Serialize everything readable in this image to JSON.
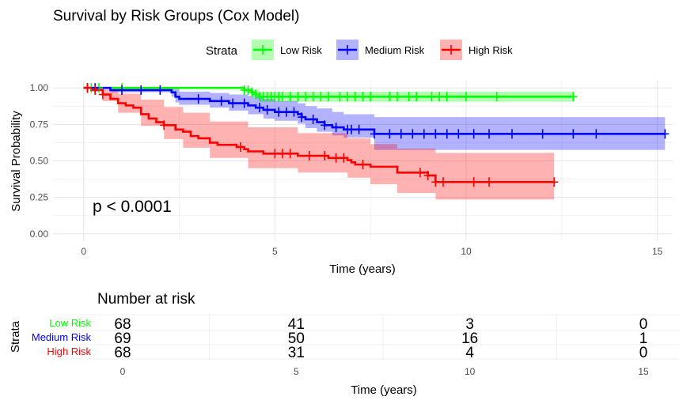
{
  "chart_data": [
    {
      "type": "line",
      "subtype": "kaplan-meier",
      "title": "Survival by Risk Groups (Cox Model)",
      "xlabel": "Time (years)",
      "ylabel": "Survival Probability",
      "xlim": [
        -0.8,
        15.4
      ],
      "ylim": [
        -0.05,
        1.05
      ],
      "xticks": [
        0,
        5,
        10,
        15
      ],
      "xtick_labels": [
        "0",
        "5",
        "10",
        "15"
      ],
      "yticks": [
        0,
        0.25,
        0.5,
        0.75,
        1.0
      ],
      "ytick_labels": [
        "0.00",
        "0.25",
        "0.50",
        "0.75",
        "1.00"
      ],
      "grid": true,
      "legend": {
        "title": "Strata",
        "position": "top"
      },
      "annotation": "p < 0.0001",
      "series": [
        {
          "name": "Low Risk",
          "color": "#00ff00",
          "band_color": "#00ff00",
          "steps": [
            [
              0,
              1.0
            ],
            [
              4.2,
              0.985
            ],
            [
              4.4,
              0.97
            ],
            [
              4.5,
              0.955
            ],
            [
              4.6,
              0.94
            ],
            [
              12.8,
              0.94
            ]
          ],
          "ci_upper": [
            [
              0,
              1.0
            ],
            [
              4.2,
              1.0
            ],
            [
              4.4,
              0.99
            ],
            [
              4.6,
              0.975
            ],
            [
              12.8,
              0.975
            ]
          ],
          "ci_lower": [
            [
              0,
              1.0
            ],
            [
              4.2,
              0.965
            ],
            [
              4.4,
              0.945
            ],
            [
              4.5,
              0.925
            ],
            [
              4.6,
              0.905
            ],
            [
              12.8,
              0.905
            ]
          ],
          "censor_times": [
            0.1,
            0.2,
            0.4,
            1.0,
            4.2,
            4.3,
            4.4,
            4.5,
            4.6,
            4.7,
            4.8,
            4.9,
            5.0,
            5.1,
            5.2,
            5.4,
            5.6,
            5.8,
            6.0,
            6.2,
            6.4,
            6.7,
            6.9,
            7.1,
            7.3,
            7.5,
            8.0,
            8.2,
            8.5,
            8.7,
            9.1,
            9.3,
            9.5,
            10.0,
            10.8,
            12.8
          ]
        },
        {
          "name": "Medium Risk",
          "color": "#0000ff",
          "band_color": "#0000ff",
          "steps": [
            [
              0,
              1.0
            ],
            [
              0.7,
              0.985
            ],
            [
              2.3,
              0.97
            ],
            [
              2.4,
              0.94
            ],
            [
              2.5,
              0.925
            ],
            [
              3.3,
              0.91
            ],
            [
              3.8,
              0.895
            ],
            [
              4.3,
              0.88
            ],
            [
              4.5,
              0.865
            ],
            [
              4.7,
              0.85
            ],
            [
              5.0,
              0.835
            ],
            [
              5.6,
              0.82
            ],
            [
              5.7,
              0.8
            ],
            [
              5.8,
              0.785
            ],
            [
              6.1,
              0.765
            ],
            [
              6.3,
              0.745
            ],
            [
              6.5,
              0.73
            ],
            [
              6.8,
              0.715
            ],
            [
              7.6,
              0.685
            ],
            [
              15.2,
              0.685
            ]
          ],
          "ci_upper": [
            [
              0,
              1.0
            ],
            [
              2.3,
              1.0
            ],
            [
              2.5,
              0.975
            ],
            [
              3.3,
              0.965
            ],
            [
              3.8,
              0.955
            ],
            [
              4.3,
              0.945
            ],
            [
              4.7,
              0.925
            ],
            [
              5.0,
              0.91
            ],
            [
              5.6,
              0.895
            ],
            [
              5.8,
              0.875
            ],
            [
              6.1,
              0.86
            ],
            [
              6.5,
              0.835
            ],
            [
              6.8,
              0.82
            ],
            [
              7.6,
              0.8
            ],
            [
              15.2,
              0.8
            ]
          ],
          "ci_lower": [
            [
              0,
              1.0
            ],
            [
              0.7,
              0.97
            ],
            [
              2.3,
              0.94
            ],
            [
              2.4,
              0.9
            ],
            [
              2.5,
              0.885
            ],
            [
              3.3,
              0.865
            ],
            [
              3.8,
              0.845
            ],
            [
              4.3,
              0.82
            ],
            [
              4.7,
              0.79
            ],
            [
              5.0,
              0.775
            ],
            [
              5.6,
              0.755
            ],
            [
              5.8,
              0.725
            ],
            [
              6.1,
              0.7
            ],
            [
              6.5,
              0.675
            ],
            [
              6.8,
              0.66
            ],
            [
              7.6,
              0.575
            ],
            [
              15.2,
              0.575
            ]
          ],
          "censor_times": [
            0.1,
            0.3,
            1.0,
            1.5,
            2.0,
            3.0,
            3.6,
            3.9,
            4.2,
            4.6,
            4.8,
            5.1,
            5.3,
            5.5,
            5.7,
            6.0,
            6.3,
            6.6,
            6.9,
            7.0,
            7.2,
            7.6,
            8.0,
            8.3,
            8.6,
            8.9,
            9.2,
            9.5,
            9.8,
            10.2,
            10.6,
            11.2,
            12.0,
            12.8,
            13.4,
            15.2
          ]
        },
        {
          "name": "High Risk",
          "color": "#ff0000",
          "band_color": "#ff0000",
          "steps": [
            [
              0,
              1.0
            ],
            [
              0.2,
              0.985
            ],
            [
              0.5,
              0.955
            ],
            [
              0.7,
              0.925
            ],
            [
              0.9,
              0.895
            ],
            [
              1.1,
              0.88
            ],
            [
              1.3,
              0.865
            ],
            [
              1.5,
              0.82
            ],
            [
              1.7,
              0.79
            ],
            [
              1.9,
              0.765
            ],
            [
              2.1,
              0.745
            ],
            [
              2.4,
              0.715
            ],
            [
              2.6,
              0.7
            ],
            [
              2.8,
              0.67
            ],
            [
              3.0,
              0.655
            ],
            [
              3.3,
              0.625
            ],
            [
              3.5,
              0.61
            ],
            [
              4.0,
              0.595
            ],
            [
              4.2,
              0.58
            ],
            [
              4.3,
              0.565
            ],
            [
              4.7,
              0.55
            ],
            [
              5.6,
              0.535
            ],
            [
              6.4,
              0.52
            ],
            [
              6.9,
              0.505
            ],
            [
              7.0,
              0.49
            ],
            [
              7.1,
              0.475
            ],
            [
              7.5,
              0.46
            ],
            [
              8.2,
              0.42
            ],
            [
              9.0,
              0.4
            ],
            [
              9.2,
              0.355
            ],
            [
              12.3,
              0.355
            ]
          ],
          "ci_upper": [
            [
              0,
              1.0
            ],
            [
              0.5,
              0.99
            ],
            [
              0.9,
              0.96
            ],
            [
              1.5,
              0.92
            ],
            [
              2.1,
              0.87
            ],
            [
              2.6,
              0.83
            ],
            [
              3.3,
              0.77
            ],
            [
              4.3,
              0.73
            ],
            [
              5.6,
              0.69
            ],
            [
              6.9,
              0.655
            ],
            [
              7.5,
              0.615
            ],
            [
              8.2,
              0.585
            ],
            [
              9.2,
              0.555
            ],
            [
              12.3,
              0.555
            ]
          ],
          "ci_lower": [
            [
              0,
              1.0
            ],
            [
              0.5,
              0.91
            ],
            [
              0.9,
              0.83
            ],
            [
              1.5,
              0.74
            ],
            [
              2.1,
              0.65
            ],
            [
              2.6,
              0.59
            ],
            [
              3.3,
              0.52
            ],
            [
              4.3,
              0.45
            ],
            [
              5.6,
              0.42
            ],
            [
              6.9,
              0.385
            ],
            [
              7.5,
              0.34
            ],
            [
              8.2,
              0.28
            ],
            [
              9.2,
              0.235
            ],
            [
              12.3,
              0.235
            ]
          ],
          "censor_times": [
            0.1,
            0.3,
            0.5,
            2.1,
            4.1,
            5.0,
            5.2,
            5.4,
            5.9,
            6.3,
            6.6,
            6.8,
            7.3,
            8.8,
            9.0,
            9.2,
            9.4,
            10.2,
            10.6,
            12.3
          ]
        }
      ]
    },
    {
      "type": "table",
      "title": "Number at risk",
      "xlabel": "Time (years)",
      "ylabel": "Strata",
      "times": [
        0,
        5,
        10,
        15
      ],
      "tick_labels": [
        "0",
        "5",
        "10",
        "15"
      ],
      "rows": [
        {
          "name": "Low Risk",
          "color": "#00ff00",
          "values": [
            "68",
            "41",
            "3",
            "0"
          ]
        },
        {
          "name": "Medium Risk",
          "color": "#0000ff",
          "values": [
            "69",
            "50",
            "16",
            "1"
          ]
        },
        {
          "name": "High Risk",
          "color": "#ff0000",
          "values": [
            "68",
            "31",
            "4",
            "0"
          ]
        }
      ]
    }
  ]
}
